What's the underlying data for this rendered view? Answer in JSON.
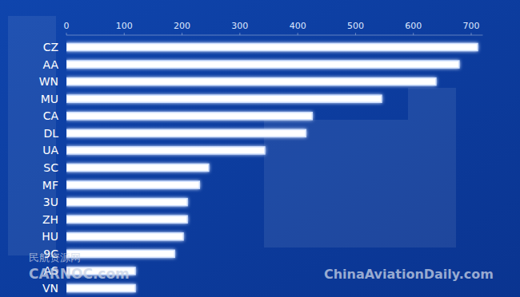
{
  "chart_data": {
    "type": "bar",
    "orientation": "horizontal",
    "categories": [
      "CZ",
      "AA",
      "WN",
      "MU",
      "CA",
      "DL",
      "UA",
      "SC",
      "MF",
      "3U",
      "ZH",
      "HU",
      "9C",
      "AS",
      "VN"
    ],
    "values": [
      711,
      679,
      639,
      545,
      425,
      414,
      343,
      246,
      230,
      209,
      209,
      202,
      187,
      119,
      119
    ],
    "color": "#ffffff",
    "xlim": [
      0,
      720
    ],
    "xticks": [
      0,
      100,
      200,
      300,
      400,
      500,
      600,
      700
    ],
    "grid": false,
    "annotations": [
      "民航资源网",
      "CARNOC.com",
      "ChinaAviationDaily.com"
    ]
  }
}
